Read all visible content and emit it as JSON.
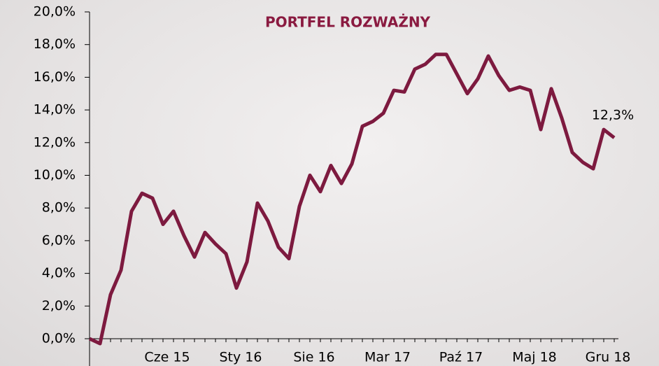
{
  "chart_data": {
    "type": "line",
    "title": "PORTFEL ROZWAŻNY",
    "categories": [
      null,
      null,
      null,
      null,
      null,
      null,
      null,
      "Cze 15",
      null,
      null,
      null,
      null,
      null,
      null,
      "Sty 16",
      null,
      null,
      null,
      null,
      null,
      null,
      "Sie 16",
      null,
      null,
      null,
      null,
      null,
      null,
      "Mar 17",
      null,
      null,
      null,
      null,
      null,
      null,
      "Paź 17",
      null,
      null,
      null,
      null,
      null,
      null,
      "Maj 18",
      null,
      null,
      null,
      null,
      null,
      null,
      "Gru 18",
      null
    ],
    "values": [
      0.0,
      -0.3,
      2.7,
      4.2,
      7.8,
      8.9,
      8.6,
      7.0,
      7.8,
      6.3,
      5.0,
      6.5,
      5.8,
      5.2,
      3.1,
      4.7,
      8.3,
      7.2,
      5.6,
      4.9,
      8.1,
      10.0,
      9.0,
      10.6,
      9.5,
      10.7,
      13.0,
      13.3,
      13.8,
      15.2,
      15.1,
      16.5,
      16.8,
      17.4,
      17.4,
      16.2,
      15.0,
      15.9,
      17.3,
      16.1,
      15.2,
      15.4,
      15.2,
      12.8,
      15.3,
      13.5,
      11.4,
      10.8,
      10.4,
      12.8,
      12.3
    ],
    "value_labels": [
      null,
      null,
      null,
      null,
      null,
      null,
      null,
      null,
      null,
      null,
      null,
      null,
      null,
      null,
      null,
      null,
      null,
      null,
      null,
      null,
      null,
      null,
      null,
      null,
      null,
      null,
      null,
      null,
      null,
      null,
      null,
      null,
      null,
      null,
      null,
      null,
      null,
      null,
      null,
      null,
      null,
      null,
      null,
      null,
      null,
      null,
      null,
      null,
      null,
      null,
      "12,3%"
    ],
    "color": "#7d1a3f",
    "ylim": [
      -1.7,
      20
    ],
    "yticks": [
      {
        "value": 0,
        "label": "0,0%"
      },
      {
        "value": 2,
        "label": "2,0%"
      },
      {
        "value": 4,
        "label": "4,0%"
      },
      {
        "value": 6,
        "label": "6,0%"
      },
      {
        "value": 8,
        "label": "8,0%"
      },
      {
        "value": 10,
        "label": "10,0%"
      },
      {
        "value": 12,
        "label": "12,0%"
      },
      {
        "value": 14,
        "label": "14,0%"
      },
      {
        "value": 16,
        "label": "16,0%"
      },
      {
        "value": 18,
        "label": "18,0%"
      },
      {
        "value": 20,
        "label": "20,0%"
      }
    ]
  }
}
